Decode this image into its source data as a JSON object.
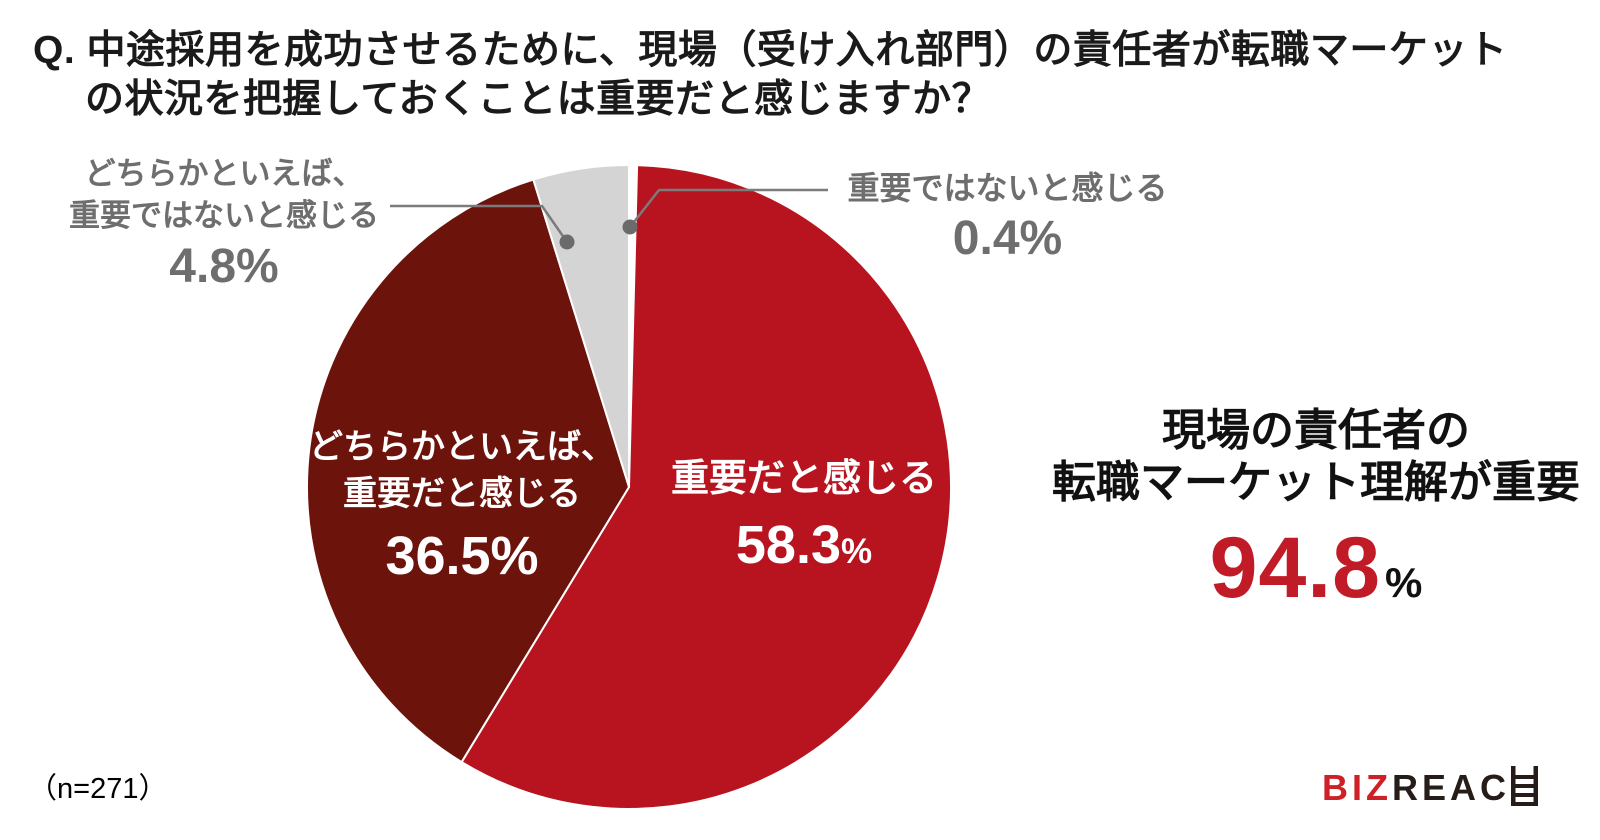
{
  "title": {
    "line1": "Q. 中途採用を成功させるために、現場（受け入れ部門）の責任者が転職マーケット",
    "line2": "の状況を把握しておくことは重要だと感じますか？"
  },
  "chart_data": {
    "type": "pie",
    "title": "中途採用を成功させるために、現場（受け入れ部門）の責任者が転職マーケットの状況を把握しておくことは重要だと感じますか？",
    "sample_size": 271,
    "layout": "starts at 12 o'clock, clockwise, 0.4% sliver immediately right of 12 o'clock",
    "slices": [
      {
        "label": "重要だと感じる",
        "value": 58.3,
        "color": "#B8141F",
        "text_color": "#FFFFFF"
      },
      {
        "label": "どちらかといえば、重要だと感じる",
        "value": 36.5,
        "color": "#6C130C",
        "text_color": "#FFFFFF"
      },
      {
        "label": "どちらかといえば、重要ではないと感じる",
        "value": 4.8,
        "color": "#D4D4D4",
        "text_color": "#6E6E6E"
      },
      {
        "label": "重要ではないと感じる",
        "value": 0.4,
        "color": "#FFFFFF",
        "text_color": "#6E6E6E"
      }
    ],
    "annotation": {
      "line1": "現場の責任者の",
      "line2": "転職マーケット理解が重要",
      "value": "94.8",
      "unit": "%",
      "value_color": "#C11B28"
    }
  },
  "labels": {
    "important": {
      "name": "重要だと感じる",
      "value": "58.3",
      "unit": "%"
    },
    "somewhat_important": {
      "line1": "どちらかといえば、",
      "line2": "重要だと感じる",
      "value": "36.5%"
    },
    "somewhat_not_important": {
      "line1": "どちらかといえば、",
      "line2": "重要ではないと感じる",
      "value": "4.8%"
    },
    "not_important": {
      "name": "重要ではないと感じる",
      "value": "0.4%"
    }
  },
  "summary": {
    "line1": "現場の責任者の",
    "line2": "転職マーケット理解が重要",
    "value": "94.8",
    "unit": "%"
  },
  "footnote": "（n=271）",
  "logo": {
    "biz": "BIZ",
    "reac": "REAC"
  }
}
